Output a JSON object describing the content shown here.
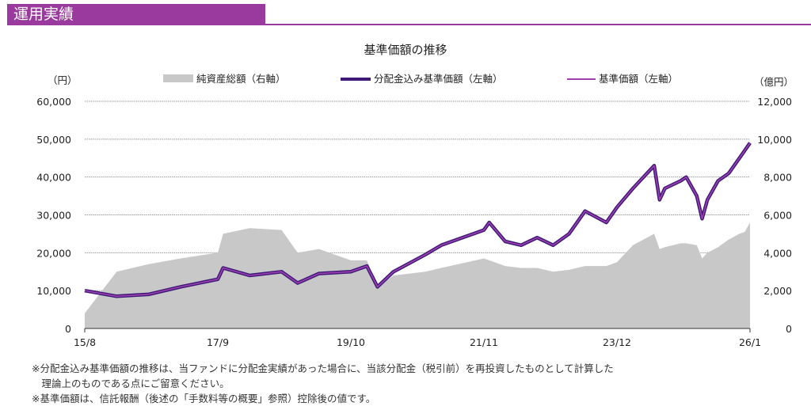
{
  "header": {
    "title": "運用実績"
  },
  "chart_data": {
    "type": "line+area",
    "title": "基準価額の推移",
    "y_left_unit": "（円）",
    "y_right_unit": "（億円）",
    "ylim_left": [
      0,
      60000
    ],
    "ylim_right": [
      0,
      12000
    ],
    "y_left_ticks": [
      "0",
      "10,000",
      "20,000",
      "30,000",
      "40,000",
      "50,000",
      "60,000"
    ],
    "y_right_ticks": [
      "0",
      "2,000",
      "4,000",
      "6,000",
      "8,000",
      "10,000",
      "12,000"
    ],
    "x_ticks": [
      "15/8",
      "17/9",
      "19/10",
      "21/11",
      "23/12",
      "26/1"
    ],
    "grid": true,
    "legend_position": "top",
    "x": [
      "2015-08",
      "2016-02",
      "2016-08",
      "2017-02",
      "2017-09",
      "2017-10",
      "2018-03",
      "2018-09",
      "2018-12",
      "2019-04",
      "2019-10",
      "2020-01",
      "2020-03",
      "2020-06",
      "2020-12",
      "2021-03",
      "2021-11",
      "2021-12",
      "2022-03",
      "2022-06",
      "2022-09",
      "2022-12",
      "2023-03",
      "2023-06",
      "2023-10",
      "2023-12",
      "2024-03",
      "2024-07",
      "2024-08",
      "2024-09",
      "2024-12",
      "2025-01",
      "2025-03",
      "2025-04",
      "2025-05",
      "2025-07",
      "2025-09",
      "2025-11",
      "2025-12",
      "2026-01"
    ],
    "series": [
      {
        "name": "純資産総額（右軸）",
        "axis": "right",
        "kind": "area",
        "color": "#c8c8c8",
        "values": [
          800,
          3000,
          3400,
          3700,
          4000,
          5000,
          5300,
          5200,
          4000,
          4200,
          3600,
          3600,
          2200,
          2800,
          3000,
          3200,
          3700,
          3600,
          3300,
          3200,
          3200,
          3000,
          3100,
          3300,
          3300,
          3500,
          4400,
          5000,
          4200,
          4300,
          4500,
          4500,
          4400,
          3700,
          4000,
          4300,
          4700,
          5000,
          5100,
          5600
        ]
      },
      {
        "name": "分配金込み基準価額（左軸）",
        "axis": "left",
        "kind": "line",
        "color": "#3d1a78",
        "values": [
          10000,
          8500,
          9000,
          11000,
          13000,
          16000,
          14000,
          15000,
          12000,
          14500,
          15000,
          16500,
          11000,
          15000,
          19500,
          22000,
          26000,
          28000,
          23000,
          22000,
          24000,
          22000,
          25000,
          31000,
          28000,
          32000,
          37000,
          43000,
          34000,
          37000,
          39000,
          40000,
          35000,
          29000,
          34000,
          39000,
          41000,
          45000,
          47000,
          49000
        ]
      },
      {
        "name": "基準価額（左軸）",
        "axis": "left",
        "kind": "line",
        "color": "#a040b0",
        "values": [
          10000,
          8500,
          9000,
          11000,
          13000,
          16000,
          14000,
          15000,
          12000,
          14500,
          15000,
          16500,
          11000,
          15000,
          19500,
          22000,
          26000,
          28000,
          23000,
          22000,
          24000,
          22000,
          25000,
          31000,
          28000,
          32000,
          37000,
          43000,
          34000,
          37000,
          39000,
          40000,
          35000,
          29000,
          34000,
          39000,
          41000,
          45000,
          47000,
          49000
        ]
      }
    ]
  },
  "notes": [
    "※分配金込み基準価額の推移は、当ファンドに分配金実績があった場合に、当該分配金（税引前）を再投資したものとして計算した",
    "　理論上のものである点にご留意ください。",
    "※基準価額は、信託報酬（後述の「手数料等の概要」参照）控除後の値です。"
  ]
}
